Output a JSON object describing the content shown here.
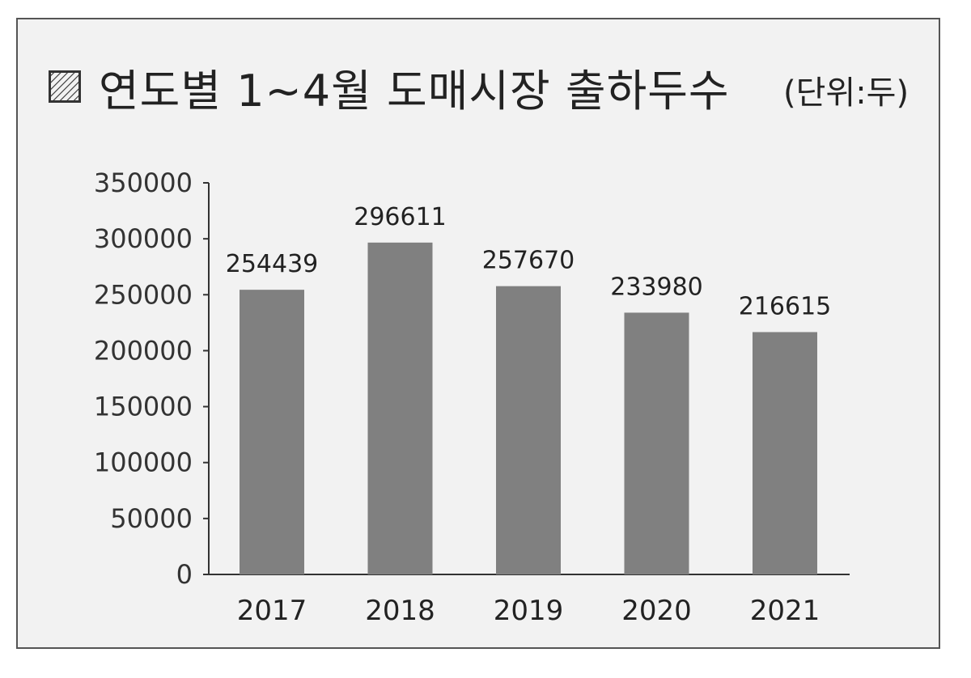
{
  "title": "연도별 1~4월 도매시장 출하두수",
  "unit": "(단위:두)",
  "title_icon": "hatched-square-icon",
  "colors": {
    "bar": "#808080",
    "axis": "#333333",
    "panel": "#f2f2f2",
    "border": "#555555"
  },
  "chart_data": {
    "type": "bar",
    "categories": [
      "2017",
      "2018",
      "2019",
      "2020",
      "2021"
    ],
    "values": [
      254439,
      296611,
      257670,
      233980,
      216615
    ],
    "ylim": [
      0,
      350000
    ],
    "yticks": [
      0,
      50000,
      100000,
      150000,
      200000,
      250000,
      300000,
      350000
    ],
    "grid": false,
    "legend": "none"
  }
}
